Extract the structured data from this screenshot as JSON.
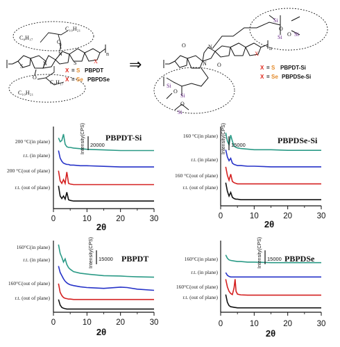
{
  "scheme": {
    "left": {
      "chain_a": "C₈H₁₇",
      "chain_b": "C₁₀H₂₁",
      "chain_c": "C₁₀H₂₁",
      "chain_d": "C₈H₁₇",
      "legend": [
        {
          "x": "X",
          "eq": "=",
          "atom": "S",
          "name": "PBPDT",
          "atom_color": "#e38a2a"
        },
        {
          "x": "X",
          "eq": "=",
          "atom": "Se",
          "name": "PBPDSe",
          "atom_color": "#e38a2a"
        }
      ]
    },
    "arrow": "⇒",
    "right": {
      "legend": [
        {
          "x": "X",
          "eq": "=",
          "atom": "S",
          "name": "PBPDT-Si",
          "atom_color": "#e38a2a"
        },
        {
          "x": "X",
          "eq": "=",
          "atom": "Se",
          "name": "PBPDSe-Si",
          "atom_color": "#e38a2a"
        }
      ]
    }
  },
  "chart_data": [
    {
      "type": "line",
      "title": "PBPDT-Si",
      "xlabel": "2θ",
      "ylabel": "Intensity(CPS)",
      "xlim": [
        0,
        30
      ],
      "xticks": [
        "0",
        "10",
        "20",
        "30"
      ],
      "scale_bar": "20000",
      "series": [
        {
          "name": "200 °C(in plane)",
          "color": "#2a9a86",
          "x": [
            1.5,
            2,
            2.5,
            3,
            3.5,
            4,
            4.5,
            5,
            6,
            8,
            10,
            15,
            20,
            25,
            30
          ],
          "y": [
            5.6,
            5.3,
            5.4,
            5.9,
            5.1,
            4.9,
            4.85,
            4.85,
            4.8,
            4.75,
            4.7,
            4.65,
            4.6,
            4.6,
            4.6
          ]
        },
        {
          "name": "r.t. (in plane)",
          "color": "#2632c8",
          "x": [
            1.5,
            2,
            2.5,
            3,
            3.5,
            4,
            4.5,
            5,
            6,
            8,
            10,
            15,
            20,
            25,
            30
          ],
          "y": [
            4.6,
            4.0,
            3.75,
            3.6,
            3.55,
            3.5,
            3.5,
            3.45,
            3.45,
            3.4,
            3.4,
            3.35,
            3.3,
            3.3,
            3.3
          ]
        },
        {
          "name": "200 °C(out of plane)",
          "color": "#d42020",
          "x": [
            1.5,
            2,
            2.5,
            3,
            3.5,
            4,
            4.5,
            5,
            6,
            8,
            10,
            15,
            20,
            25,
            30
          ],
          "y": [
            3.0,
            2.2,
            2.0,
            2.3,
            2.0,
            2.9,
            2.0,
            1.95,
            1.9,
            1.9,
            1.9,
            1.9,
            1.9,
            1.9,
            1.9
          ]
        },
        {
          "name": "r.t. (out of plane)",
          "color": "#111111",
          "x": [
            1.5,
            2,
            2.5,
            3,
            3.5,
            4,
            4.5,
            5,
            6,
            8,
            10,
            15,
            20,
            25,
            30
          ],
          "y": [
            1.8,
            1.0,
            0.8,
            1.0,
            0.75,
            1.3,
            0.7,
            0.65,
            0.6,
            0.6,
            0.6,
            0.6,
            0.6,
            0.6,
            0.6
          ]
        }
      ]
    },
    {
      "type": "line",
      "title": "PBPDSe-Si",
      "xlabel": "2θ",
      "ylabel": "Intensity(CPS)",
      "xlim": [
        0,
        30
      ],
      "xticks": [
        "0",
        "10",
        "20",
        "30"
      ],
      "scale_bar": "15000",
      "series": [
        {
          "name": "160 °C(in plane)",
          "color": "#2a9a86",
          "x": [
            1.5,
            2,
            2.5,
            3,
            3.5,
            4,
            4.5,
            5,
            6,
            8,
            10,
            15,
            20,
            25,
            30
          ],
          "y": [
            6.0,
            5.3,
            5.0,
            5.8,
            5.3,
            4.9,
            4.8,
            4.75,
            4.7,
            4.65,
            4.6,
            4.6,
            4.55,
            4.55,
            4.55
          ]
        },
        {
          "name": "r.t. (in plane)",
          "color": "#2632c8",
          "x": [
            1.5,
            2,
            2.5,
            3,
            3.5,
            4,
            4.5,
            5,
            6,
            8,
            10,
            15,
            20,
            25,
            30
          ],
          "y": [
            4.6,
            4.0,
            3.7,
            3.9,
            3.5,
            3.4,
            3.35,
            3.3,
            3.3,
            3.25,
            3.25,
            3.2,
            3.2,
            3.2,
            3.2
          ]
        },
        {
          "name": "160 °C(out of plane)",
          "color": "#d42020",
          "x": [
            1.5,
            2,
            2.5,
            3,
            3.5,
            4,
            4.5,
            5,
            6,
            8,
            10,
            15,
            20,
            25,
            30
          ],
          "y": [
            3.2,
            2.5,
            2.1,
            2.6,
            2.0,
            1.9,
            1.85,
            1.8,
            1.8,
            1.8,
            1.8,
            1.8,
            1.8,
            1.8,
            1.8
          ]
        },
        {
          "name": "r.t. (out of plane)",
          "color": "#111111",
          "x": [
            1.5,
            2,
            2.5,
            3,
            3.5,
            4,
            4.5,
            5,
            6,
            8,
            10,
            15,
            20,
            25,
            30
          ],
          "y": [
            1.9,
            1.2,
            0.8,
            1.1,
            0.7,
            0.6,
            0.55,
            0.55,
            0.5,
            0.5,
            0.5,
            0.5,
            0.5,
            0.5,
            0.5
          ]
        }
      ]
    },
    {
      "type": "line",
      "title": "PBPDT",
      "xlabel": "2θ",
      "ylabel": "Intensity(CPS)",
      "xlim": [
        0,
        30
      ],
      "xticks": [
        "0",
        "10",
        "20",
        "30"
      ],
      "scale_bar": "15000",
      "series": [
        {
          "name": "160°C(in plane)",
          "color": "#2a9a86",
          "x": [
            1.5,
            2,
            2.5,
            3,
            3.5,
            4,
            4.5,
            5,
            6,
            8,
            10,
            15,
            20,
            22,
            25,
            30
          ],
          "y": [
            8.5,
            7.4,
            6.9,
            6.3,
            6.7,
            6.0,
            5.6,
            5.4,
            5.1,
            4.9,
            4.8,
            4.6,
            4.55,
            4.5,
            4.45,
            4.4
          ]
        },
        {
          "name": "r.t. (in plane)",
          "color": "#2632c8",
          "x": [
            1.5,
            2,
            2.5,
            3,
            3.5,
            4,
            4.5,
            5,
            6,
            8,
            10,
            15,
            20,
            22,
            25,
            30
          ],
          "y": [
            5.8,
            5.0,
            4.6,
            4.2,
            3.9,
            3.7,
            3.55,
            3.45,
            3.35,
            3.2,
            3.1,
            3.0,
            3.15,
            3.1,
            2.9,
            2.75
          ]
        },
        {
          "name": "160°C(out of plane)",
          "color": "#d42020",
          "x": [
            1.5,
            2,
            2.5,
            3,
            3.5,
            4,
            4.5,
            5,
            6,
            8,
            10,
            15,
            20,
            25,
            30
          ],
          "y": [
            3.6,
            2.5,
            2.1,
            1.85,
            1.75,
            1.7,
            1.65,
            1.65,
            1.6,
            1.6,
            1.6,
            1.6,
            1.6,
            1.6,
            1.6
          ]
        },
        {
          "name": "r.t. (out of plane)",
          "color": "#111111",
          "x": [
            1.5,
            2,
            2.5,
            3,
            3.5,
            4,
            4.5,
            5,
            6,
            8,
            10,
            15,
            20,
            25,
            30
          ],
          "y": [
            1.6,
            0.9,
            0.6,
            0.5,
            0.45,
            0.4,
            0.4,
            0.4,
            0.4,
            0.4,
            0.4,
            0.4,
            0.4,
            0.4,
            0.4
          ]
        }
      ]
    },
    {
      "type": "line",
      "title": "PBPDSe",
      "xlabel": "2θ",
      "ylabel": "Intensity(CPS)",
      "xlim": [
        0,
        30
      ],
      "xticks": [
        "0",
        "10",
        "20",
        "30"
      ],
      "scale_bar": "15000",
      "series": [
        {
          "name": "160°C(in plane)",
          "color": "#2a9a86",
          "x": [
            1.5,
            2,
            2.5,
            3,
            4,
            5,
            6,
            8,
            10,
            15,
            20,
            25,
            30
          ],
          "y": [
            5.2,
            4.9,
            4.75,
            4.7,
            4.65,
            4.6,
            4.6,
            4.55,
            4.55,
            4.5,
            4.5,
            4.5,
            4.5
          ]
        },
        {
          "name": "r.t. (in plane)",
          "color": "#2632c8",
          "x": [
            1.5,
            2,
            2.5,
            3,
            4,
            5,
            6,
            8,
            10,
            15,
            20,
            25,
            30
          ],
          "y": [
            3.6,
            3.35,
            3.25,
            3.2,
            3.2,
            3.2,
            3.2,
            3.2,
            3.2,
            3.2,
            3.2,
            3.2,
            3.2
          ]
        },
        {
          "name": "160°C(out of plane)",
          "color": "#d42020",
          "x": [
            1.5,
            2,
            2.5,
            3,
            3.5,
            4,
            4.3,
            4.6,
            5,
            5.5,
            6,
            8,
            10,
            15,
            20,
            25,
            30
          ],
          "y": [
            3.0,
            2.3,
            1.9,
            1.7,
            1.6,
            2.2,
            3.0,
            1.9,
            1.65,
            1.6,
            1.58,
            1.55,
            1.55,
            1.55,
            1.55,
            1.55,
            1.55
          ]
        },
        {
          "name": "r.t. (out of plane)",
          "color": "#111111",
          "x": [
            1.5,
            2,
            2.5,
            3,
            4,
            5,
            6,
            8,
            10,
            15,
            20,
            25,
            30
          ],
          "y": [
            1.6,
            0.9,
            0.6,
            0.5,
            0.45,
            0.4,
            0.4,
            0.4,
            0.4,
            0.4,
            0.4,
            0.4,
            0.4
          ]
        }
      ]
    }
  ]
}
